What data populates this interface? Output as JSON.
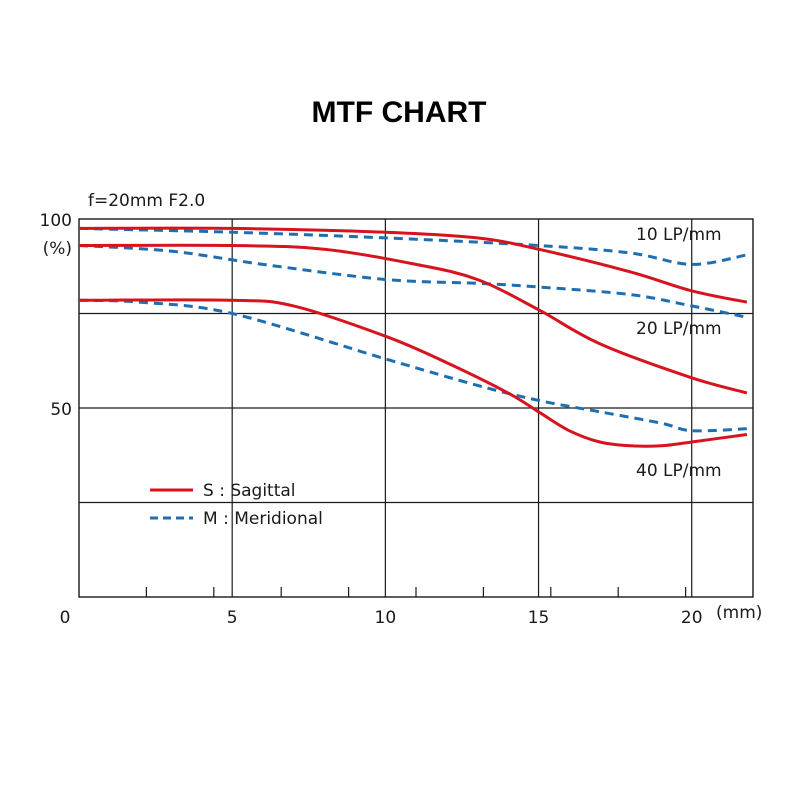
{
  "colors": {
    "sagittal": "#d7141e",
    "meridional": "#1f6eb0",
    "grid": "#1a1a1a"
  },
  "chart_data": {
    "type": "line",
    "title": "MTF CHART",
    "subtitle": "f=20mm  F2.0",
    "y_top_label": "100",
    "y_unit_label": "(%)",
    "x_unit_label": "(mm)",
    "xlim": [
      0,
      22
    ],
    "ylim": [
      0,
      100
    ],
    "x_ticks": [
      0,
      5,
      10,
      15,
      20
    ],
    "x_tick_labels": [
      "0",
      "5",
      "10",
      "15",
      "20"
    ],
    "y_ticks": [
      50
    ],
    "y_tick_labels": [
      "50"
    ],
    "x_minor_ticks": [
      2.2,
      4.4,
      6.6,
      8.8,
      11,
      13.2,
      15.4,
      17.6,
      19.8
    ],
    "grid_x": [
      5,
      10,
      15,
      20
    ],
    "grid_y": [
      25,
      50,
      75
    ],
    "grid": true,
    "legend": {
      "placement": "lower-left",
      "entries": [
        {
          "style": "solid",
          "label": "S : Sagittal"
        },
        {
          "style": "dashed",
          "label": "M : Meridional"
        }
      ]
    },
    "annotations": [
      "10 LP/mm",
      "20 LP/mm",
      "40 LP/mm"
    ],
    "series": [
      {
        "group": "10 LP/mm",
        "type": "S",
        "x": [
          0,
          5,
          10,
          13,
          15,
          18,
          20,
          21.8
        ],
        "y": [
          97.5,
          97.5,
          96.5,
          95,
          92,
          86,
          81,
          78
        ]
      },
      {
        "group": "10 LP/mm",
        "type": "M",
        "x": [
          0,
          5,
          10,
          15,
          18,
          20,
          21.8
        ],
        "y": [
          97.5,
          96.5,
          95,
          93,
          91,
          88,
          90.5
        ]
      },
      {
        "group": "20 LP/mm",
        "type": "S",
        "x": [
          0,
          5,
          8,
          11,
          13,
          15,
          17,
          20,
          21.8
        ],
        "y": [
          93,
          93,
          92,
          88,
          84,
          76,
          67,
          58,
          54
        ]
      },
      {
        "group": "20 LP/mm",
        "type": "M",
        "x": [
          0,
          3,
          6,
          10,
          13,
          15,
          18,
          20,
          21.8
        ],
        "y": [
          93,
          91.5,
          88,
          84,
          83,
          82,
          80,
          77,
          74
        ]
      },
      {
        "group": "40 LP/mm",
        "type": "S",
        "x": [
          0,
          5,
          7,
          10,
          12,
          14,
          15,
          16,
          17,
          18,
          19,
          20,
          21.8
        ],
        "y": [
          78.5,
          78.5,
          77,
          69,
          62,
          54,
          49,
          44,
          41,
          40,
          40,
          41,
          43
        ]
      },
      {
        "group": "40 LP/mm",
        "type": "M",
        "x": [
          0,
          2,
          5,
          10,
          13,
          15,
          17,
          19,
          20,
          21.8
        ],
        "y": [
          78.5,
          78,
          75,
          63,
          56,
          52,
          49,
          46,
          44,
          44.5
        ]
      }
    ]
  }
}
